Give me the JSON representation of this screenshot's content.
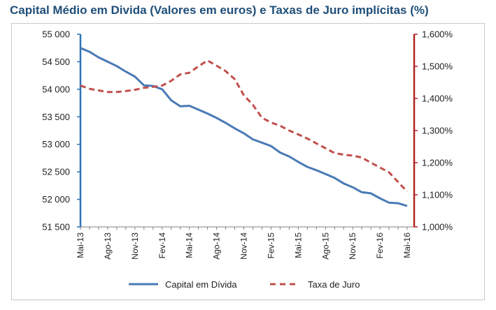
{
  "chart_data": {
    "type": "line",
    "title": "Capital Médio em Divida (Valores em euros) e Taxas de Juro implícitas (%)",
    "xlabel": "",
    "ylabel": "",
    "x_tick_labels": [
      "Mai-13",
      "Ago-13",
      "Nov-13",
      "Fev-14",
      "Mai-14",
      "Ago-14",
      "Nov-14",
      "Fev-15",
      "Mai-15",
      "Ago-15",
      "Nov-15",
      "Fev-16",
      "Mai-16"
    ],
    "left_axis": {
      "min": 51500,
      "max": 55000,
      "ticks": [
        51500,
        52000,
        52500,
        53000,
        53500,
        54000,
        54500,
        55000
      ],
      "tick_labels": [
        "51 500",
        "52 000",
        "52 500",
        "53 000",
        "53 500",
        "54 000",
        "54 500",
        "55 000"
      ],
      "color": "#2e75b6"
    },
    "right_axis": {
      "min": 1.0,
      "max": 1.6,
      "ticks": [
        1.0,
        1.1,
        1.2,
        1.3,
        1.4,
        1.5,
        1.6
      ],
      "tick_labels": [
        "1,000%",
        "1,100%",
        "1,200%",
        "1,300%",
        "1,400%",
        "1,500%",
        "1,600%"
      ],
      "color": "#b22222"
    },
    "months_count": 37,
    "series": [
      {
        "name": "Capital em Dívida",
        "axis": "left",
        "style": "solid",
        "color": "#4a7ab5",
        "values": [
          54750,
          54680,
          54580,
          54500,
          54420,
          54320,
          54230,
          54070,
          54060,
          54000,
          53800,
          53690,
          53700,
          53630,
          53560,
          53480,
          53390,
          53290,
          53200,
          53090,
          53030,
          52970,
          52850,
          52780,
          52680,
          52590,
          52530,
          52460,
          52390,
          52290,
          52220,
          52130,
          52110,
          52020,
          51940,
          51930,
          51880
        ]
      },
      {
        "name": "Taxa de Juro",
        "axis": "right",
        "style": "dashed",
        "color": "#c0504d",
        "values": [
          1.44,
          1.43,
          1.425,
          1.42,
          1.42,
          1.423,
          1.427,
          1.433,
          1.436,
          1.44,
          1.455,
          1.475,
          1.48,
          1.5,
          1.518,
          1.502,
          1.485,
          1.46,
          1.41,
          1.38,
          1.34,
          1.325,
          1.315,
          1.3,
          1.288,
          1.275,
          1.26,
          1.245,
          1.23,
          1.225,
          1.222,
          1.216,
          1.2,
          1.185,
          1.17,
          1.14,
          1.11
        ]
      }
    ],
    "grid": false,
    "legend_position": "bottom"
  }
}
